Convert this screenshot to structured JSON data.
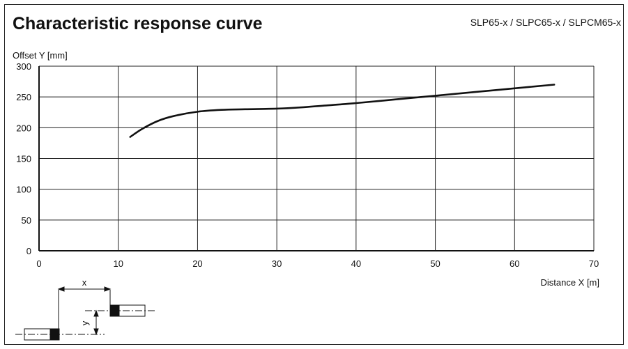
{
  "header": {
    "title": "Characteristic response curve",
    "models": "SLP65-x / SLPC65-x / SLPCM65-x"
  },
  "chart_data": {
    "type": "line",
    "title": "Characteristic response curve",
    "xlabel": "Distance X [m]",
    "ylabel": "Offset Y [mm]",
    "xlim": [
      0,
      70
    ],
    "ylim": [
      0,
      300
    ],
    "xticks": [
      0,
      10,
      20,
      30,
      40,
      50,
      60,
      70
    ],
    "yticks": [
      0,
      50,
      100,
      150,
      200,
      250,
      300
    ],
    "grid": true,
    "series": [
      {
        "x": [
          11.5,
          13,
          15,
          17,
          20,
          23,
          26,
          30,
          33,
          36,
          40,
          45,
          50,
          55,
          60,
          65
        ],
        "y": [
          185,
          198,
          211,
          219,
          226,
          229,
          230,
          231,
          233,
          236,
          240,
          246,
          252,
          258,
          264,
          270
        ]
      }
    ]
  },
  "diagram": {
    "x_label": "x",
    "y_label": "y"
  }
}
